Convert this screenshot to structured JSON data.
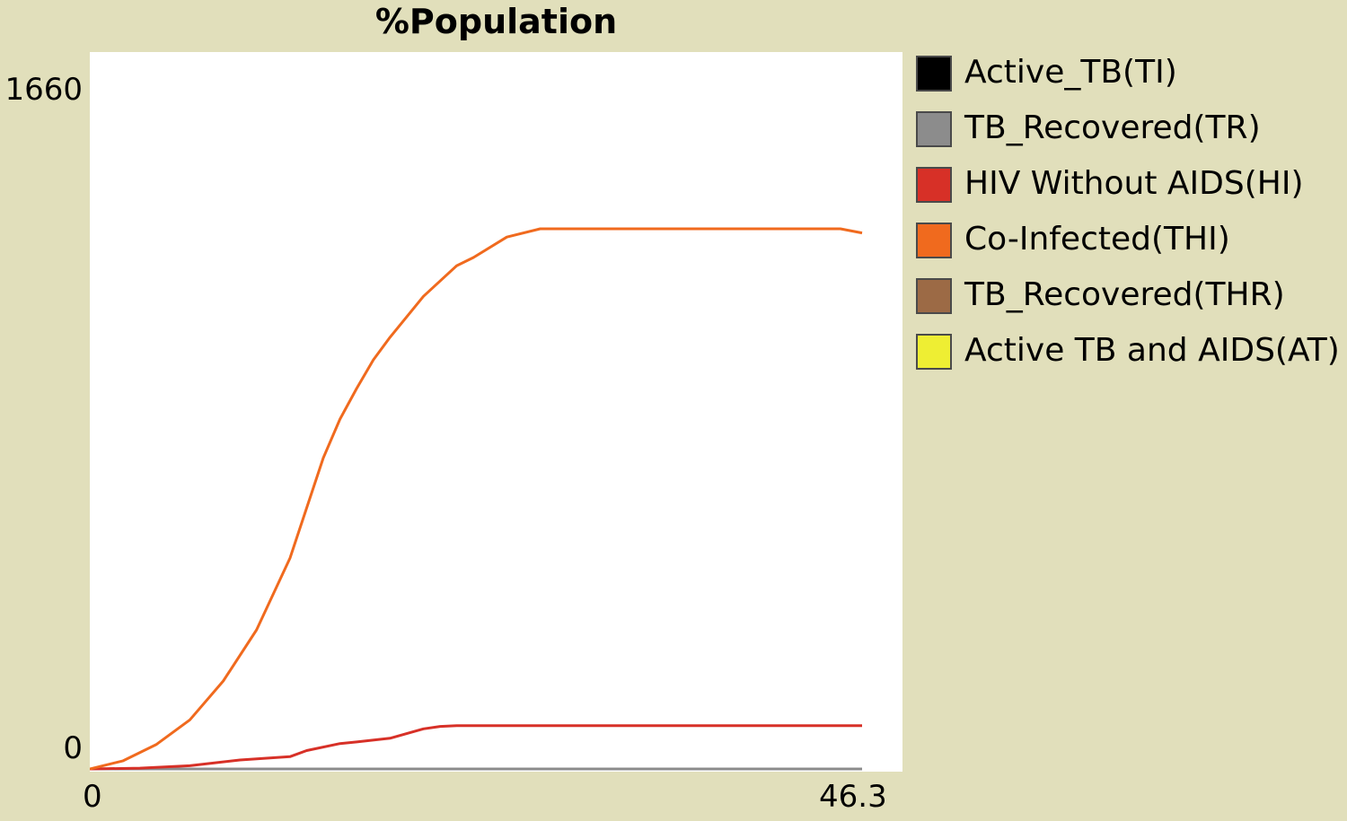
{
  "chart_data": {
    "type": "line",
    "title": "%Population",
    "xlabel": "",
    "ylabel": "",
    "xlim": [
      0,
      46.3
    ],
    "ylim": [
      0,
      1660
    ],
    "x_tick_labels": [
      "0",
      "46.3"
    ],
    "y_tick_labels": [
      "0",
      "1660"
    ],
    "grid": false,
    "legend_position": "right",
    "series": [
      {
        "name": "Active_TB(TI)",
        "color": "#000000",
        "x": [
          0,
          46.3
        ],
        "y": [
          0,
          0
        ]
      },
      {
        "name": "TB_Recovered(TR)",
        "color": "#8c8c8c",
        "x": [
          0,
          46.3
        ],
        "y": [
          0,
          0
        ]
      },
      {
        "name": "HIV Without AIDS(HI)",
        "color": "#d73027",
        "x": [
          0,
          3,
          6,
          9,
          12,
          13,
          15,
          16,
          18,
          20,
          21,
          22,
          25,
          28,
          46.3
        ],
        "y": [
          0,
          2,
          8,
          22,
          30,
          45,
          62,
          66,
          75,
          98,
          104,
          106,
          106,
          106,
          106
        ]
      },
      {
        "name": "Co-Infected(THI)",
        "color": "#f06a1e",
        "x": [
          0,
          2,
          4,
          6,
          8,
          10,
          12,
          14,
          15,
          16,
          17,
          18,
          20,
          22,
          23,
          25,
          27,
          30,
          35,
          40,
          45,
          46.3
        ],
        "y": [
          0,
          20,
          60,
          120,
          215,
          340,
          515,
          760,
          855,
          930,
          1000,
          1055,
          1155,
          1230,
          1250,
          1300,
          1320,
          1320,
          1320,
          1320,
          1320,
          1310
        ]
      },
      {
        "name": "TB_Recovered(THR)",
        "color": "#9c6a45",
        "x": [
          0,
          46.3
        ],
        "y": [
          0,
          0
        ]
      },
      {
        "name": "Active TB and AIDS(AT)",
        "color": "#eeee33",
        "x": [
          0,
          46.3
        ],
        "y": [
          0,
          0
        ]
      }
    ]
  }
}
